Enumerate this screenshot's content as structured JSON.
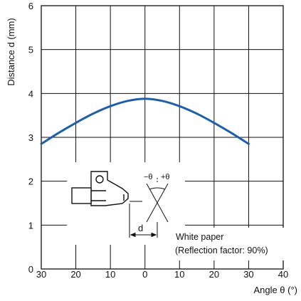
{
  "chart_data": {
    "type": "line",
    "xlabel": "Angle θ (°)",
    "ylabel": "Distance d (mm)",
    "xlim": [
      -30,
      40
    ],
    "ylim": [
      0,
      6
    ],
    "x_tick_values": [
      -30,
      -20,
      -10,
      0,
      10,
      20,
      30,
      40
    ],
    "x_tick_labels": [
      "30",
      "20",
      "10",
      "0",
      "10",
      "20",
      "30",
      "40"
    ],
    "y_ticks": [
      0,
      1,
      2,
      3,
      4,
      5,
      6
    ],
    "grid": true,
    "series": [
      {
        "color": "#1f5fa8",
        "x": [
          -30,
          -25,
          -20,
          -15,
          -10,
          -5,
          0,
          5,
          10,
          15,
          20,
          25,
          30
        ],
        "y": [
          2.85,
          3.1,
          3.33,
          3.54,
          3.71,
          3.83,
          3.88,
          3.83,
          3.71,
          3.54,
          3.33,
          3.1,
          2.85
        ]
      }
    ],
    "annotation": {
      "line1": "White paper",
      "line2": "(Reflection factor: 90%)"
    },
    "diagram_labels": {
      "minus_theta": "−θ",
      "plus_theta": "+θ",
      "d": "d"
    }
  }
}
